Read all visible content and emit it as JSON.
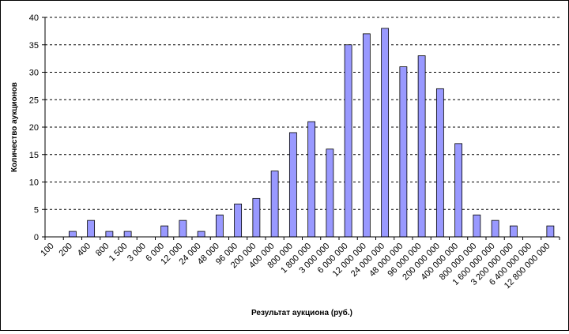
{
  "chart_data": {
    "type": "bar",
    "title": "",
    "xlabel": "Результат аукциона (руб.)",
    "ylabel": "Количество аукционов",
    "ylim": [
      0,
      40
    ],
    "yticks": [
      "0",
      "5",
      "10",
      "15",
      "20",
      "25",
      "30",
      "35",
      "40"
    ],
    "grid": true,
    "categories": [
      "100",
      "200",
      "400",
      "800",
      "1 500",
      "3 000",
      "6 000",
      "12 000",
      "24 000",
      "48 000",
      "96 000",
      "200 000",
      "400 000",
      "800 000",
      "1 800 000",
      "3 000 000",
      "6 000 000",
      "12 000 000",
      "24 000 000",
      "48 000 000",
      "96 000 000",
      "200 000 000",
      "400 000 000",
      "800 000 000",
      "1 600 000 000",
      "3 200 000 000",
      "6 400 000 000",
      "12 800 000 000"
    ],
    "values": [
      0,
      1,
      3,
      1,
      1,
      0,
      2,
      3,
      1,
      4,
      6,
      7,
      12,
      19,
      21,
      16,
      35,
      37,
      38,
      31,
      33,
      27,
      17,
      4,
      3,
      2,
      0,
      2
    ],
    "colors": {
      "bar_fill": "#9999ff",
      "bar_stroke": "#000000",
      "grid": "#000000"
    }
  }
}
